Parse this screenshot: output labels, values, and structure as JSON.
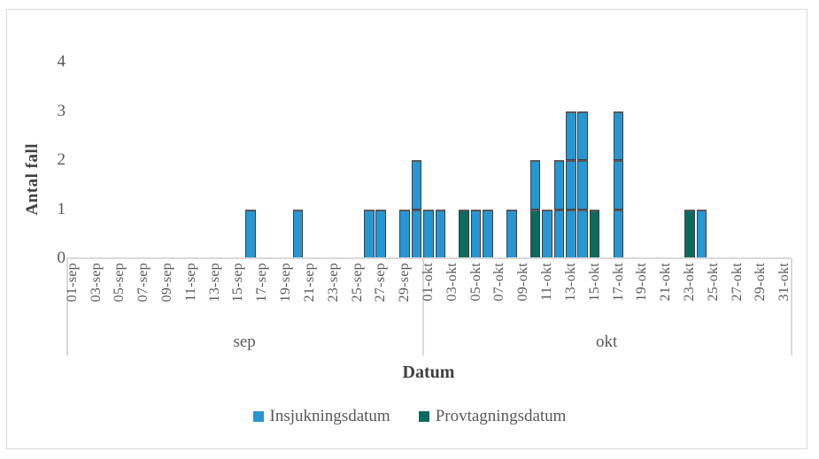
{
  "chart_data": {
    "type": "bar",
    "stacked": true,
    "xlabel": "Datum",
    "ylabel": "Antal fall",
    "ylim": [
      0,
      4
    ],
    "yticks": [
      0,
      1,
      2,
      3,
      4
    ],
    "grid": false,
    "legend_position": "bottom",
    "tick_label_step": 2,
    "categories": [
      "01-sep",
      "02-sep",
      "03-sep",
      "04-sep",
      "05-sep",
      "06-sep",
      "07-sep",
      "08-sep",
      "09-sep",
      "10-sep",
      "11-sep",
      "12-sep",
      "13-sep",
      "14-sep",
      "15-sep",
      "16-sep",
      "17-sep",
      "18-sep",
      "19-sep",
      "20-sep",
      "21-sep",
      "22-sep",
      "23-sep",
      "24-sep",
      "25-sep",
      "26-sep",
      "27-sep",
      "28-sep",
      "29-sep",
      "30-sep",
      "01-okt",
      "02-okt",
      "03-okt",
      "04-okt",
      "05-okt",
      "06-okt",
      "07-okt",
      "08-okt",
      "09-okt",
      "10-okt",
      "11-okt",
      "12-okt",
      "13-okt",
      "14-okt",
      "15-okt",
      "16-okt",
      "17-okt",
      "18-okt",
      "19-okt",
      "20-okt",
      "21-okt",
      "22-okt",
      "23-okt",
      "24-okt",
      "25-okt",
      "26-okt",
      "27-okt",
      "28-okt",
      "29-okt",
      "30-okt",
      "31-okt"
    ],
    "month_groups": [
      {
        "label": "sep",
        "days": 30
      },
      {
        "label": "okt",
        "days": 31
      }
    ],
    "stack_order": [
      "Provtagningsdatum",
      "Insjukningsdatum"
    ],
    "series": [
      {
        "name": "Insjukningsdatum",
        "color": "#2697d3",
        "values": [
          0,
          0,
          0,
          0,
          0,
          0,
          0,
          0,
          0,
          0,
          0,
          0,
          0,
          0,
          0,
          1,
          0,
          0,
          0,
          1,
          0,
          0,
          0,
          0,
          0,
          1,
          1,
          0,
          1,
          2,
          1,
          1,
          0,
          0,
          1,
          1,
          0,
          1,
          0,
          1,
          1,
          2,
          3,
          3,
          0,
          0,
          3,
          0,
          0,
          0,
          0,
          0,
          0,
          1,
          0,
          0,
          0,
          0,
          0,
          0,
          0
        ]
      },
      {
        "name": "Provtagningsdatum",
        "color": "#0b6b60",
        "values": [
          0,
          0,
          0,
          0,
          0,
          0,
          0,
          0,
          0,
          0,
          0,
          0,
          0,
          0,
          0,
          0,
          0,
          0,
          0,
          0,
          0,
          0,
          0,
          0,
          0,
          0,
          0,
          0,
          0,
          0,
          0,
          0,
          0,
          1,
          0,
          0,
          0,
          0,
          0,
          1,
          0,
          0,
          0,
          0,
          1,
          0,
          0,
          0,
          0,
          0,
          0,
          0,
          1,
          0,
          0,
          0,
          0,
          0,
          0,
          0,
          0
        ]
      }
    ],
    "colors": {
      "bar_border": "#3f3f3f",
      "axis_line": "#d9d9d9",
      "tick_text": "#595959",
      "title_text": "#404040"
    }
  },
  "legend": {
    "items": [
      {
        "label": "Insjukningsdatum",
        "color": "#2697d3"
      },
      {
        "label": "Provtagningsdatum",
        "color": "#0b6b60"
      }
    ]
  }
}
